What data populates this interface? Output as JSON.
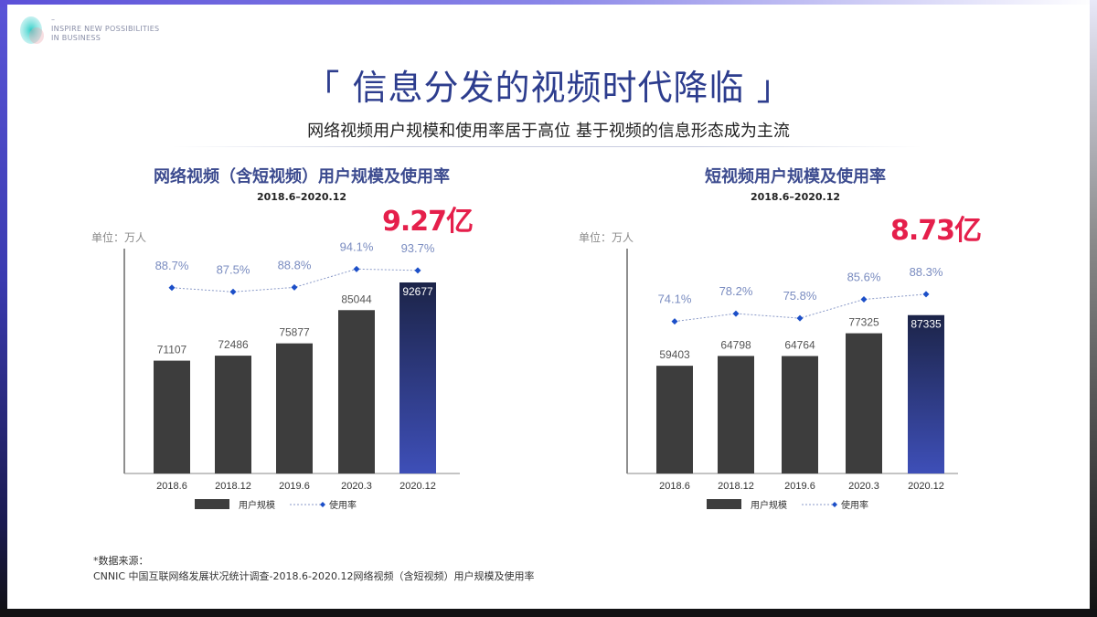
{
  "header": {
    "tagline_line1": "INSPIRE NEW POSSIBILITIES",
    "tagline_line2": "IN BUSINESS",
    "dash": "–"
  },
  "title": "「 信息分发的视频时代降临 」",
  "subtitle": "网络视频用户规模和使用率居于高位  基于视频的信息形态成为主流",
  "colors": {
    "bar": "#3d3d3d",
    "highlight_top": "#1c2448",
    "highlight_bottom": "#3e4fb8",
    "rate_line": "#1c4fc8",
    "rate_label": "#7a8cc0",
    "accent_red": "#e51f4b",
    "title_blue": "#2d3d8e"
  },
  "chart_data": [
    {
      "type": "bar",
      "title": "网络视频（含短视频）用户规模及使用率",
      "subtitle": "2018.6–2020.12",
      "unit": "单位：万人",
      "highlight": "9.27亿",
      "categories": [
        "2018.6",
        "2018.12",
        "2019.6",
        "2020.3",
        "2020.12"
      ],
      "series": [
        {
          "name": "用户规模",
          "type": "bar",
          "values": [
            71107,
            72486,
            75877,
            85044,
            92677
          ],
          "labels": [
            "71107",
            "72486",
            "75877",
            "85044",
            "92677"
          ]
        },
        {
          "name": "使用率",
          "type": "line",
          "values": [
            88.7,
            87.5,
            88.8,
            94.1,
            93.7
          ],
          "labels": [
            "88.7%",
            "87.5%",
            "88.8%",
            "94.1%",
            "93.7%"
          ]
        }
      ],
      "ylim": [
        40000,
        102000
      ],
      "rate_ylim": [
        35,
        100
      ],
      "legend": "bottom",
      "grid": false
    },
    {
      "type": "bar",
      "title": "短视频用户规模及使用率",
      "subtitle": "2018.6–2020.12",
      "unit": "单位：万人",
      "highlight": "8.73亿",
      "categories": [
        "2018.6",
        "2018.12",
        "2019.6",
        "2020.3",
        "2020.12"
      ],
      "series": [
        {
          "name": "用户规模",
          "type": "bar",
          "values": [
            59403,
            64798,
            64764,
            77325,
            87335
          ],
          "labels": [
            "59403",
            "64798",
            "64764",
            "77325",
            "87335"
          ]
        },
        {
          "name": "使用率",
          "type": "line",
          "values": [
            74.1,
            78.2,
            75.8,
            85.6,
            88.3
          ],
          "labels": [
            "74.1%",
            "78.2%",
            "75.8%",
            "85.6%",
            "88.3%"
          ]
        }
      ],
      "ylim": [
        0,
        124000
      ],
      "rate_ylim": [
        -5,
        112
      ],
      "legend": "bottom",
      "grid": false
    }
  ],
  "source": {
    "line1": "*数据来源：",
    "line2": "CNNIC 中国互联网络发展状况统计调查-2018.6-2020.12网络视频（含短视频）用户规模及使用率"
  }
}
